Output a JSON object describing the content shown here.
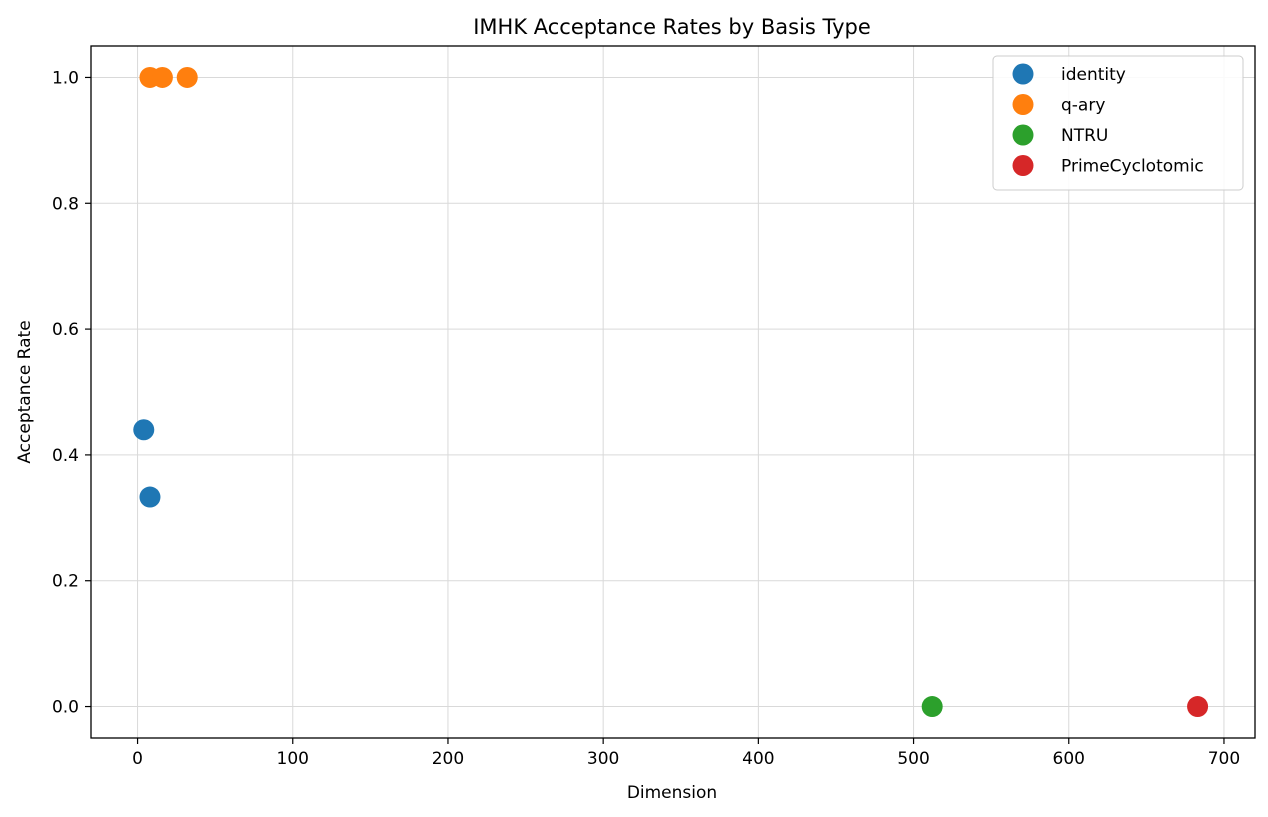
{
  "chart_data": {
    "type": "scatter",
    "title": "IMHK Acceptance Rates by Basis Type",
    "xlabel": "Dimension",
    "ylabel": "Acceptance Rate",
    "xlim": [
      -30,
      720
    ],
    "ylim": [
      -0.05,
      1.05
    ],
    "xticks": [
      0,
      100,
      200,
      300,
      400,
      500,
      600,
      700
    ],
    "yticks": [
      0.0,
      0.2,
      0.4,
      0.6,
      0.8,
      1.0
    ],
    "xtick_labels": [
      "0",
      "100",
      "200",
      "300",
      "400",
      "500",
      "600",
      "700"
    ],
    "ytick_labels": [
      "0.0",
      "0.2",
      "0.4",
      "0.6",
      "0.8",
      "1.0"
    ],
    "grid": true,
    "legend_position": "top-right",
    "series": [
      {
        "name": "identity",
        "color": "#1f77b4",
        "points": [
          {
            "x": 4,
            "y": 0.44
          },
          {
            "x": 8,
            "y": 0.333
          }
        ]
      },
      {
        "name": "q-ary",
        "color": "#ff7f0e",
        "points": [
          {
            "x": 8,
            "y": 1.0
          },
          {
            "x": 16,
            "y": 1.0
          },
          {
            "x": 32,
            "y": 1.0
          }
        ]
      },
      {
        "name": "NTRU",
        "color": "#2ca02c",
        "points": [
          {
            "x": 512,
            "y": 0.0
          }
        ]
      },
      {
        "name": "PrimeCyclotomic",
        "color": "#d62728",
        "points": [
          {
            "x": 683,
            "y": 0.0
          }
        ]
      }
    ]
  }
}
